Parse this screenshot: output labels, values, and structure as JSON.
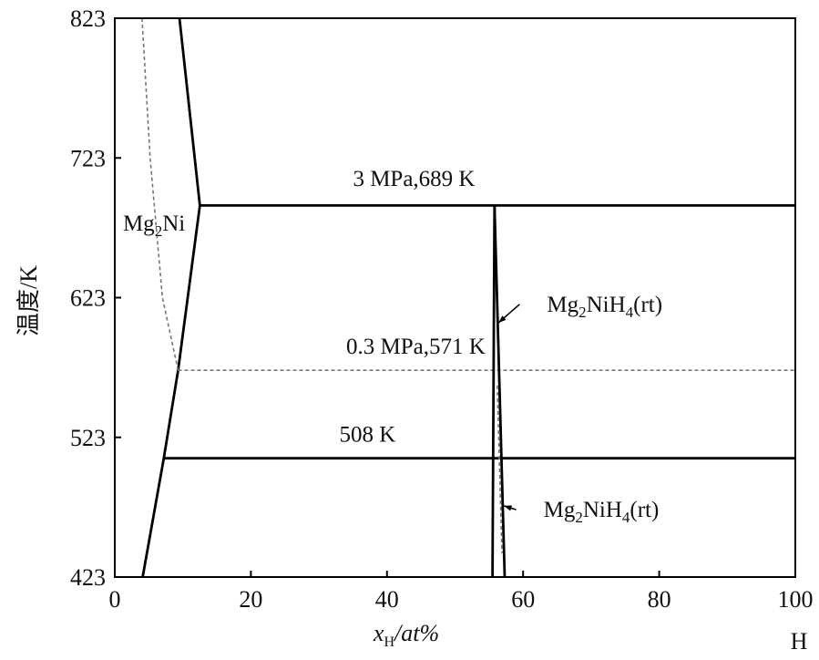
{
  "chart_data": {
    "type": "line",
    "xlabel_main": "x",
    "xlabel_sub": "H",
    "xlabel_rest": "/at%",
    "ylabel": "温度/K",
    "corner_label": "H",
    "xlim": [
      0,
      100
    ],
    "ylim": [
      423,
      823
    ],
    "x_ticks": [
      0,
      20,
      40,
      60,
      80,
      100
    ],
    "y_ticks": [
      423,
      523,
      623,
      723,
      823
    ],
    "grid": false,
    "series": [
      {
        "style": "solid",
        "points": [
          [
            9.5,
            823
          ],
          [
            12.5,
            689
          ],
          [
            9.3,
            571
          ],
          [
            7.2,
            508
          ],
          [
            4.1,
            423
          ]
        ]
      },
      {
        "style": "dashed",
        "points": [
          [
            4.0,
            823
          ],
          [
            5.2,
            723
          ],
          [
            7.0,
            623
          ],
          [
            9.3,
            571
          ]
        ]
      },
      {
        "style": "solid",
        "points": [
          [
            12.5,
            689
          ],
          [
            100,
            689
          ]
        ]
      },
      {
        "style": "dashed",
        "points": [
          [
            9.3,
            571
          ],
          [
            100,
            571
          ]
        ]
      },
      {
        "style": "solid",
        "points": [
          [
            7.2,
            508
          ],
          [
            100,
            508
          ]
        ]
      },
      {
        "style": "solid",
        "points": [
          [
            55.8,
            689
          ],
          [
            55.5,
            423
          ]
        ]
      },
      {
        "style": "solid",
        "points": [
          [
            55.8,
            689
          ],
          [
            57.3,
            423
          ]
        ]
      },
      {
        "style": "dashed",
        "points": [
          [
            56.2,
            560
          ],
          [
            56.9,
            440
          ]
        ]
      }
    ],
    "annotations": [
      {
        "id": "a1",
        "text": "3 MPa,689 K",
        "x": 35.0,
        "y": 703
      },
      {
        "id": "a2",
        "text": "0.3 MPa,571 K",
        "x": 34.0,
        "y": 583
      },
      {
        "id": "a3",
        "text": "508 K",
        "x": 33.0,
        "y": 520
      },
      {
        "id": "a4",
        "parts": [
          "Mg",
          "2",
          "Ni"
        ],
        "x": 1.2,
        "y": 671
      },
      {
        "id": "a5",
        "parts": [
          "Mg",
          "2",
          "NiH",
          "4",
          "(rt)"
        ],
        "x": 63.5,
        "y": 613,
        "arrow_to": [
          56.1,
          605
        ]
      },
      {
        "id": "a6",
        "parts": [
          "Mg",
          "2",
          "NiH",
          "4",
          "(rt)"
        ],
        "x": 63.0,
        "y": 466,
        "arrow_to": [
          56.9,
          474
        ]
      }
    ]
  }
}
